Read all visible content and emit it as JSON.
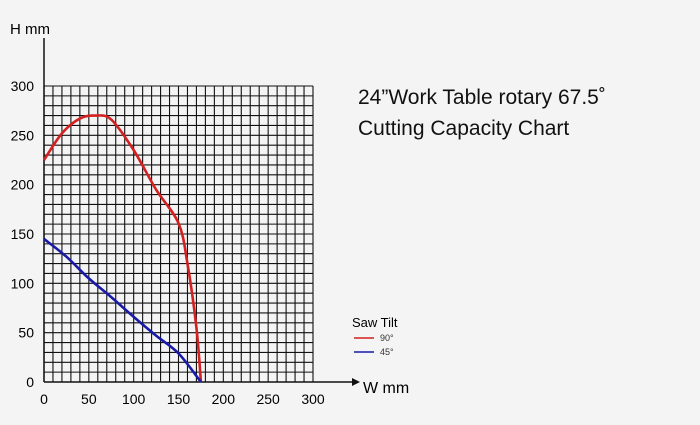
{
  "chart_data": {
    "type": "line",
    "title": [
      "24”Work Table rotary 67.5˚",
      "Cutting Capacity Chart"
    ],
    "xlabel": "W mm",
    "ylabel": "H mm",
    "xlim": [
      0,
      300
    ],
    "ylim": [
      0,
      300
    ],
    "grid": true,
    "grid_step": 10,
    "x_ticks": [
      "0",
      "50",
      "100",
      "150",
      "200",
      "250",
      "300"
    ],
    "y_ticks": [
      "0",
      "50",
      "100",
      "150",
      "200",
      "250",
      "300"
    ],
    "legend": {
      "title": "Saw Tilt",
      "placement": "bottom-right"
    },
    "series": [
      {
        "name": "90°",
        "color": "#d42020",
        "x": [
          0,
          20,
          40,
          57,
          75,
          100,
          125,
          150,
          160,
          170,
          175
        ],
        "y": [
          225,
          252,
          267,
          270,
          266,
          235,
          195,
          161,
          120,
          55,
          0
        ]
      },
      {
        "name": "45°",
        "color": "#1a1aa8",
        "x": [
          0,
          25,
          50,
          75,
          100,
          125,
          150,
          175
        ],
        "y": [
          145,
          127,
          105,
          86,
          66,
          47,
          29,
          0
        ]
      }
    ]
  }
}
